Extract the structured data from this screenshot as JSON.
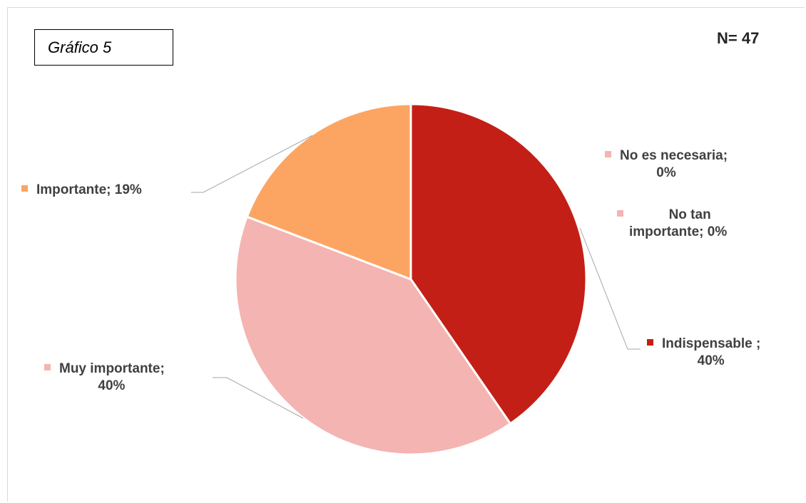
{
  "header": {
    "chart_label": "Gráfico 5",
    "n_label": "N= 47"
  },
  "colors": {
    "indispensable": "#c31f17",
    "muy_importante": "#f4b4b1",
    "importante": "#fca563",
    "no_tan_importante": "#f4b4b1",
    "no_es_necesaria": "#f4b4b1",
    "leader": "#a6a6a6",
    "label_text": "#404040"
  },
  "chart_data": {
    "type": "pie",
    "categories": [
      "Indispensable",
      "Muy importante",
      "Importante",
      "No tan importante",
      "No es necesaria"
    ],
    "values": [
      40,
      40,
      19,
      0,
      0
    ],
    "unit": "%",
    "legend": "none",
    "data_labels": {
      "indispensable": {
        "line1": "Indispensable ;",
        "line2": "40%"
      },
      "muy_importante": {
        "line1": "Muy importante;",
        "line2": "40%"
      },
      "importante": {
        "line1": "Importante; 19%"
      },
      "no_tan_importante": {
        "line1": "No tan",
        "line2": "importante; 0%"
      },
      "no_es_necesaria": {
        "line1": "No es necesaria;",
        "line2": "0%"
      }
    }
  }
}
